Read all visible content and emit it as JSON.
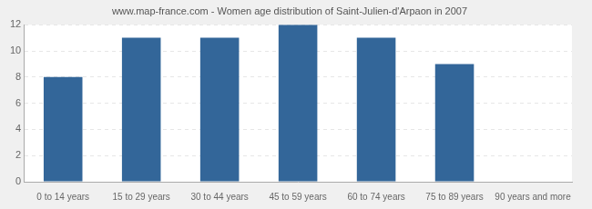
{
  "chart_data": {
    "type": "bar",
    "title": "www.map-france.com - Women age distribution of Saint-Julien-d'Arpaon in 2007",
    "categories": [
      "0 to 14 years",
      "15 to 29 years",
      "30 to 44 years",
      "45 to 59 years",
      "60 to 74 years",
      "75 to 89 years",
      "90 years and more"
    ],
    "values": [
      8,
      11,
      11,
      12,
      11,
      9,
      0
    ],
    "color": "#336699",
    "ylim": [
      0,
      12
    ],
    "yticks": [
      0,
      2,
      4,
      6,
      8,
      10,
      12
    ],
    "grid": true
  }
}
